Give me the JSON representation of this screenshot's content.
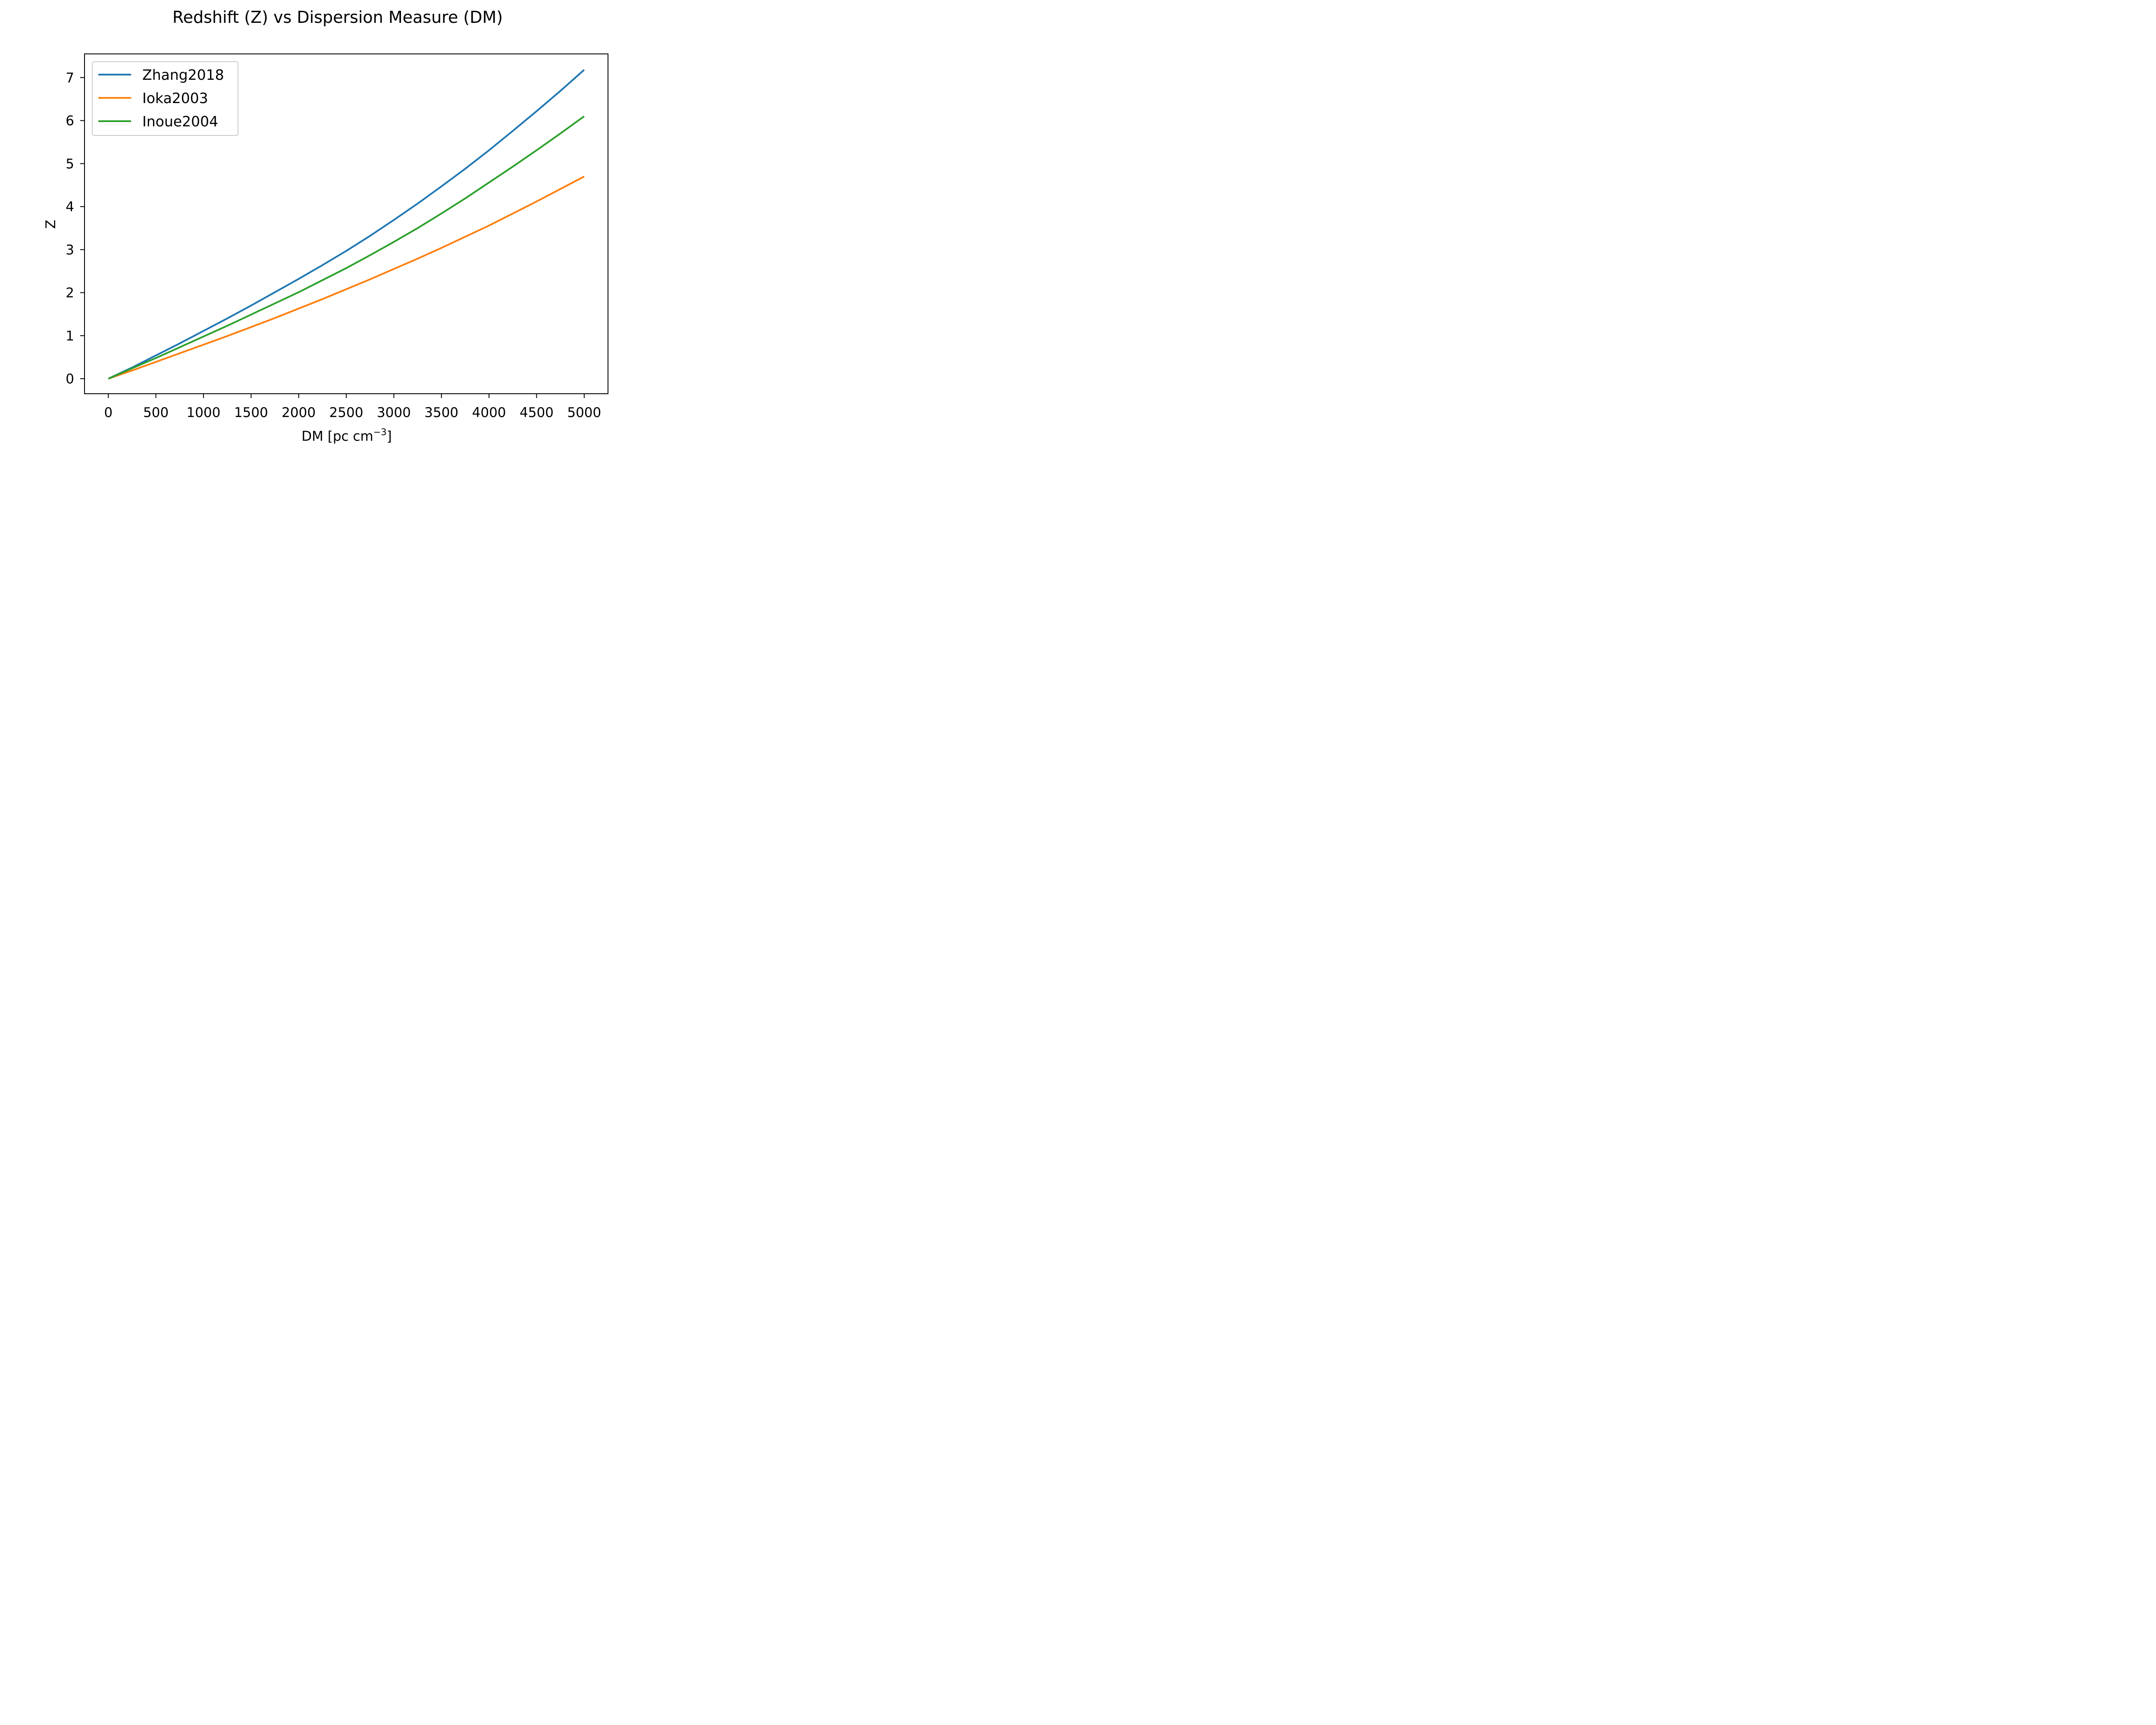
{
  "chart_data": {
    "type": "line",
    "title": "Redshift (Z) vs Dispersion Measure (DM)",
    "xlabel": "DM [pc cm",
    "xlabel_sup": "−3",
    "xlabel_end": "]",
    "ylabel": "Z",
    "xlim": [
      -250,
      5250
    ],
    "ylim": [
      -0.35,
      7.55
    ],
    "xticks": [
      0,
      500,
      1000,
      1500,
      2000,
      2500,
      3000,
      3500,
      4000,
      4500,
      5000
    ],
    "yticks": [
      0,
      1,
      2,
      3,
      4,
      5,
      6,
      7
    ],
    "x": [
      0,
      250,
      500,
      750,
      1000,
      1250,
      1500,
      1750,
      2000,
      2250,
      2500,
      2750,
      3000,
      3250,
      3500,
      3750,
      4000,
      4250,
      4500,
      4750,
      5000
    ],
    "series": [
      {
        "name": "Zhang2018",
        "color": "#1f77b4",
        "values": [
          0,
          0.26,
          0.54,
          0.82,
          1.11,
          1.4,
          1.7,
          2.01,
          2.32,
          2.64,
          2.97,
          3.32,
          3.69,
          4.07,
          4.47,
          4.88,
          5.31,
          5.76,
          6.22,
          6.69,
          7.18
        ]
      },
      {
        "name": "Ioka2003",
        "color": "#ff7f0e",
        "values": [
          0,
          0.19,
          0.39,
          0.59,
          0.79,
          0.99,
          1.2,
          1.41,
          1.63,
          1.85,
          2.08,
          2.31,
          2.55,
          2.79,
          3.04,
          3.3,
          3.56,
          3.84,
          4.12,
          4.41,
          4.7
        ]
      },
      {
        "name": "Inoue2004",
        "color": "#2ca02c",
        "values": [
          0,
          0.24,
          0.48,
          0.73,
          0.98,
          1.23,
          1.49,
          1.75,
          2.01,
          2.29,
          2.57,
          2.87,
          3.18,
          3.5,
          3.84,
          4.19,
          4.56,
          4.93,
          5.31,
          5.7,
          6.1
        ]
      }
    ],
    "legend": "top-left",
    "grid": false
  }
}
